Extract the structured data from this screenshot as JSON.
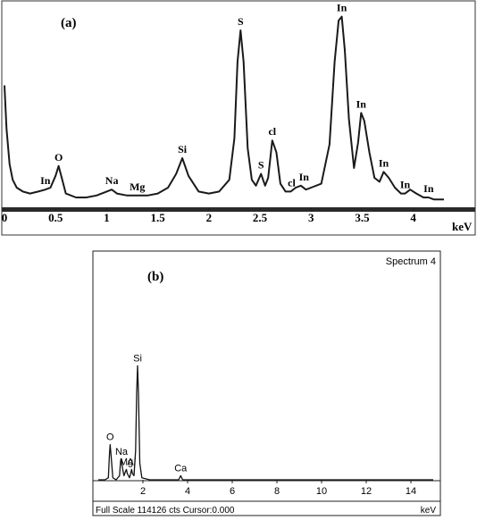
{
  "chart_data": [
    {
      "type": "line",
      "panel_label": "(a)",
      "xlabel": "keV",
      "xlim": [
        0,
        4.3
      ],
      "ylim": [
        0,
        100
      ],
      "x_ticks": [
        "0",
        "0.5",
        "1",
        "1.5",
        "2",
        "2.5",
        "3",
        "3.5",
        "4"
      ],
      "series_color": "#1a1a1a",
      "series": [
        {
          "x": [
            0.0,
            0.02,
            0.05,
            0.08,
            0.12,
            0.18,
            0.25,
            0.33,
            0.4,
            0.45,
            0.5,
            0.53,
            0.56,
            0.6,
            0.7,
            0.8,
            0.9,
            1.0,
            1.05,
            1.1,
            1.2,
            1.3,
            1.4,
            1.5,
            1.6,
            1.68,
            1.74,
            1.8,
            1.9,
            2.0,
            2.1,
            2.2,
            2.25,
            2.28,
            2.31,
            2.34,
            2.38,
            2.42,
            2.46,
            2.51,
            2.55,
            2.58,
            2.62,
            2.66,
            2.7,
            2.75,
            2.8,
            2.85,
            2.9,
            2.95,
            3.0,
            3.1,
            3.18,
            3.23,
            3.27,
            3.3,
            3.33,
            3.37,
            3.42,
            3.46,
            3.49,
            3.52,
            3.57,
            3.62,
            3.67,
            3.71,
            3.76,
            3.82,
            3.88,
            3.92,
            3.97,
            4.03,
            4.1,
            4.15,
            4.2,
            4.3
          ],
          "y": [
            62,
            40,
            22,
            14,
            10,
            8,
            7,
            8,
            9,
            10,
            16,
            21,
            15,
            7,
            5,
            5,
            6,
            8,
            9,
            7,
            6,
            6,
            6,
            7,
            10,
            17,
            25,
            16,
            8,
            7,
            8,
            14,
            35,
            74,
            90,
            74,
            30,
            14,
            11,
            17,
            11,
            15,
            34,
            28,
            12,
            8,
            8,
            10,
            11,
            9,
            10,
            12,
            32,
            74,
            95,
            97,
            80,
            45,
            20,
            33,
            48,
            44,
            28,
            15,
            13,
            18,
            15,
            10,
            7,
            7,
            9,
            7,
            5,
            5,
            4,
            4
          ]
        }
      ],
      "peak_labels": [
        {
          "text": "O",
          "x": 0.53,
          "y": 21
        },
        {
          "text": "In",
          "x": 0.4,
          "y": 9
        },
        {
          "text": "Na",
          "x": 1.05,
          "y": 9
        },
        {
          "text": "Mg",
          "x": 1.3,
          "y": 6
        },
        {
          "text": "Si",
          "x": 1.74,
          "y": 25
        },
        {
          "text": "S",
          "x": 2.31,
          "y": 90
        },
        {
          "text": "S",
          "x": 2.51,
          "y": 17
        },
        {
          "text": "cl",
          "x": 2.62,
          "y": 34
        },
        {
          "text": "cl",
          "x": 2.81,
          "y": 8
        },
        {
          "text": "In",
          "x": 2.93,
          "y": 11
        },
        {
          "text": "In",
          "x": 3.3,
          "y": 97
        },
        {
          "text": "In",
          "x": 3.49,
          "y": 48
        },
        {
          "text": "In",
          "x": 3.71,
          "y": 18
        },
        {
          "text": "In",
          "x": 3.92,
          "y": 7
        },
        {
          "text": "In",
          "x": 4.15,
          "y": 5
        }
      ]
    },
    {
      "type": "line",
      "panel_label": "(b)",
      "title": "Spectrum 4",
      "xlabel": "keV",
      "xlim": [
        0,
        15
      ],
      "ylim": [
        0,
        100
      ],
      "x_ticks": [
        "2",
        "4",
        "6",
        "8",
        "10",
        "12",
        "14"
      ],
      "footer": "Full Scale 114126 cts Cursor:0.000",
      "series_color": "#111111",
      "series": [
        {
          "x": [
            0.0,
            0.3,
            0.45,
            0.5,
            0.53,
            0.57,
            0.65,
            0.8,
            0.95,
            1.0,
            1.04,
            1.08,
            1.15,
            1.22,
            1.26,
            1.3,
            1.4,
            1.45,
            1.49,
            1.53,
            1.6,
            1.67,
            1.72,
            1.76,
            1.8,
            1.86,
            1.95,
            2.3,
            3.0,
            3.6,
            3.69,
            3.78,
            4.0,
            5.0,
            15.0
          ],
          "y": [
            0,
            0,
            1,
            12,
            17,
            12,
            1,
            0,
            2,
            9,
            10,
            6,
            2,
            4,
            5,
            3,
            1,
            3,
            5,
            3,
            2,
            14,
            42,
            55,
            42,
            8,
            1,
            0,
            0,
            0,
            2,
            0,
            0,
            0,
            0
          ]
        }
      ],
      "peak_labels": [
        {
          "text": "O",
          "x": 0.53,
          "y": 17
        },
        {
          "text": "Na",
          "x": 1.04,
          "y": 10
        },
        {
          "text": "Mg",
          "x": 1.26,
          "y": 5
        },
        {
          "text": "Al",
          "x": 1.49,
          "y": 5
        },
        {
          "text": "Si",
          "x": 1.76,
          "y": 55
        },
        {
          "text": "Ca",
          "x": 3.69,
          "y": 2
        }
      ]
    }
  ]
}
